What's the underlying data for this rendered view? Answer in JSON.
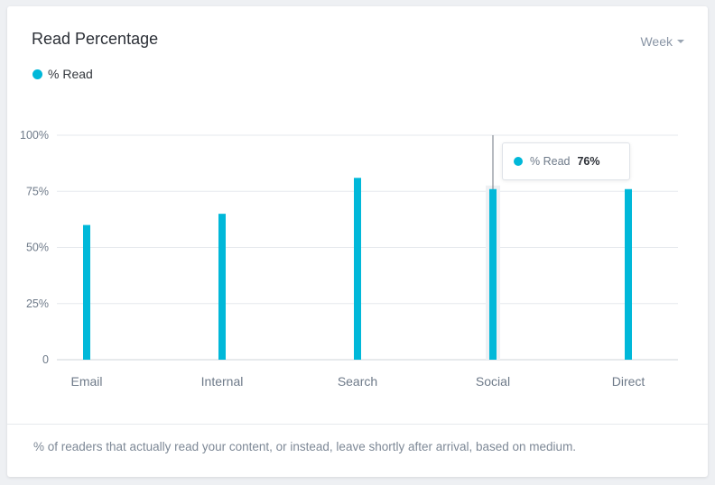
{
  "card": {
    "title": "Read Percentage",
    "range_selector": "Week",
    "footer": "% of readers that actually read your content, or instead, leave shortly after arrival, based on medium."
  },
  "colors": {
    "accent": "#00b8d9",
    "grid": "#e6e9ed",
    "tick_text": "#6e7a89"
  },
  "chart_data": {
    "type": "bar",
    "categories": [
      "Email",
      "Internal",
      "Search",
      "Social",
      "Direct"
    ],
    "series": [
      {
        "name": "% Read",
        "values": [
          60,
          65,
          81,
          76,
          76
        ]
      }
    ],
    "ylim": [
      0,
      100
    ],
    "yticks": [
      0,
      25,
      50,
      75,
      100
    ],
    "ytick_labels": [
      "0",
      "25%",
      "50%",
      "75%",
      "100%"
    ],
    "grid": true,
    "legend": "top-left",
    "highlighted_category": "Social",
    "tooltip": {
      "label": "% Read",
      "value": "76%"
    }
  }
}
